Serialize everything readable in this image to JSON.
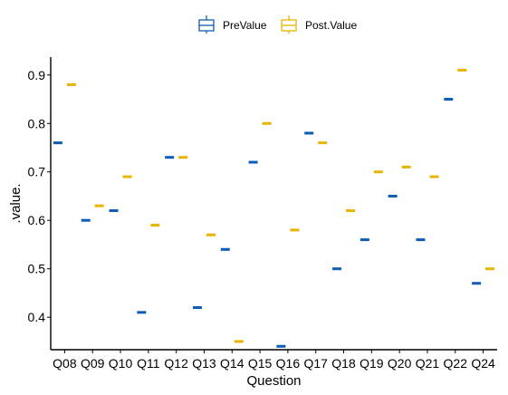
{
  "chart_data": {
    "type": "boxplot",
    "xlabel": "Question",
    "ylabel": ".value.",
    "categories": [
      "Q08",
      "Q09",
      "Q10",
      "Q11",
      "Q12",
      "Q13",
      "Q14",
      "Q15",
      "Q16",
      "Q17",
      "Q18",
      "Q19",
      "Q20",
      "Q21",
      "Q22",
      "Q24"
    ],
    "series": [
      {
        "name": "PreValue",
        "color": "#0C5DB7",
        "values": [
          0.76,
          0.6,
          0.62,
          0.41,
          0.73,
          0.42,
          0.54,
          0.72,
          0.34,
          0.78,
          0.5,
          0.56,
          0.65,
          0.56,
          0.85,
          0.47
        ]
      },
      {
        "name": "Post.Value",
        "color": "#E8B400",
        "values": [
          0.88,
          0.63,
          0.69,
          0.59,
          0.73,
          0.57,
          0.35,
          0.8,
          0.58,
          0.76,
          0.62,
          0.7,
          0.71,
          0.69,
          0.91,
          0.5
        ]
      }
    ],
    "ylim": [
      0.333,
      0.937
    ],
    "yticks": [
      0.4,
      0.5,
      0.6,
      0.7,
      0.8,
      0.9
    ],
    "grid": false,
    "legend_position": "top"
  }
}
